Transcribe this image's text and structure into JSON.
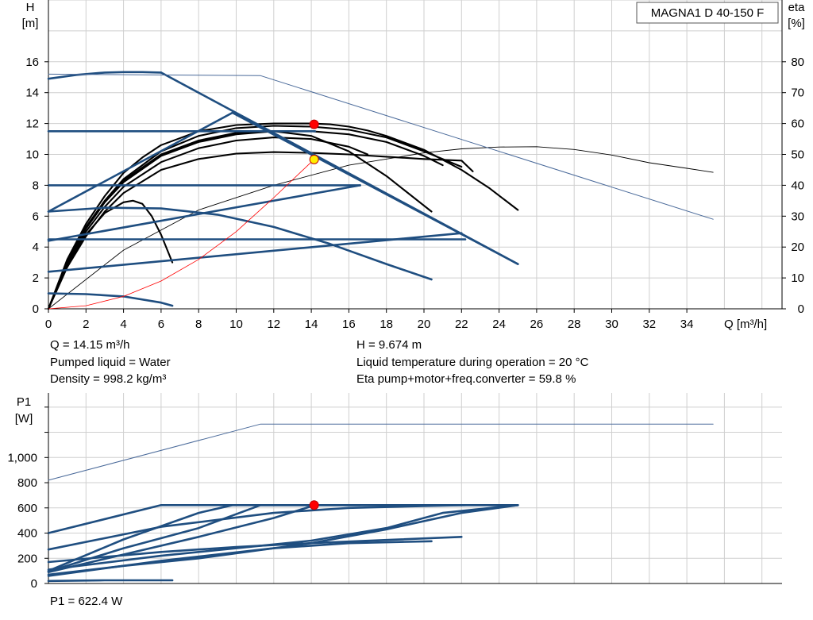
{
  "chart_data": [
    {
      "type": "line",
      "title": "MAGNA1 D 40-150 F",
      "xlabel": "Q [m³/h]",
      "ylabel_lines": [
        "H",
        "[m]"
      ],
      "ylabel2_lines": [
        "eta",
        "[%]"
      ],
      "xlim": [
        0,
        38
      ],
      "ylim": [
        0,
        20
      ],
      "y2lim": [
        0,
        100
      ],
      "x_ticks": [
        0,
        2,
        4,
        6,
        8,
        10,
        12,
        14,
        16,
        18,
        20,
        22,
        24,
        26,
        28,
        30,
        32,
        34
      ],
      "y_ticks": [
        0,
        2,
        4,
        6,
        8,
        10,
        12,
        14,
        16
      ],
      "y2_ticks": [
        0,
        10,
        20,
        30,
        40,
        50,
        60,
        70,
        80
      ],
      "grid": true,
      "colors": {
        "black": "#000000",
        "blue": "#1f4e80",
        "thin": "#4a6a9a",
        "red": "#ff0000"
      },
      "series": [
        {
          "style": "head_black",
          "x": [
            0,
            1,
            2,
            3,
            4,
            5,
            6,
            8,
            10,
            12,
            13,
            14,
            15,
            16,
            17,
            18,
            20,
            22,
            23.5,
            25
          ],
          "y": [
            0,
            3.2,
            5.5,
            7.3,
            8.8,
            9.8,
            10.6,
            11.5,
            11.9,
            12.0,
            12.0,
            12.0,
            11.95,
            11.8,
            11.55,
            11.2,
            10.3,
            9.0,
            7.8,
            6.4
          ]
        },
        {
          "style": "head_black",
          "x": [
            0,
            1,
            2,
            3,
            4,
            6,
            8,
            10,
            12,
            14,
            16,
            18,
            20,
            21,
            22
          ],
          "y": [
            0,
            3.1,
            5.3,
            7.0,
            8.4,
            10.2,
            11.2,
            11.7,
            11.85,
            11.8,
            11.6,
            11.1,
            10.2,
            9.7,
            9.2
          ]
        },
        {
          "style": "head_black",
          "x": [
            0,
            1,
            2,
            3,
            4,
            6,
            8,
            10,
            12,
            14,
            16,
            18,
            20,
            21
          ],
          "y": [
            0,
            3.0,
            5.2,
            6.9,
            8.2,
            9.9,
            10.8,
            11.3,
            11.5,
            11.5,
            11.3,
            10.8,
            9.9,
            9.3
          ]
        },
        {
          "style": "head_black",
          "x": [
            0,
            1,
            2,
            3,
            4,
            6,
            8,
            10,
            12,
            14,
            16,
            17
          ],
          "y": [
            0,
            2.9,
            5.0,
            6.6,
            7.9,
            9.5,
            10.4,
            10.9,
            11.1,
            11.0,
            10.5,
            10.0
          ]
        },
        {
          "style": "head_black",
          "x": [
            0,
            1,
            2,
            3,
            4,
            6,
            8,
            10,
            12,
            14,
            16,
            18,
            20,
            22,
            22.6
          ],
          "y": [
            0,
            2.7,
            4.7,
            6.3,
            7.5,
            9.0,
            9.7,
            10.05,
            10.15,
            10.1,
            10.0,
            9.85,
            9.7,
            9.6,
            8.9
          ]
        },
        {
          "style": "head_black",
          "x": [
            0,
            1,
            2,
            3,
            4,
            6,
            8,
            10,
            12,
            14,
            16,
            18,
            20.4
          ],
          "y": [
            0,
            3.0,
            5.2,
            6.9,
            8.3,
            10.0,
            10.9,
            11.4,
            11.5,
            11.2,
            10.2,
            8.6,
            6.3
          ]
        },
        {
          "style": "head_black",
          "x": [
            0,
            1,
            2,
            3,
            4,
            4.5,
            5,
            5.5,
            6,
            6.6
          ],
          "y": [
            0,
            2.8,
            4.8,
            6.2,
            6.9,
            7.0,
            6.8,
            6.0,
            4.8,
            3.0
          ]
        },
        {
          "style": "eta_black",
          "x": [
            0,
            4,
            8,
            12,
            16,
            20,
            22,
            24,
            26,
            28,
            30,
            32,
            34,
            35.4
          ],
          "y": [
            0,
            19,
            32,
            40,
            46.5,
            50.5,
            51.8,
            52.4,
            52.5,
            51.6,
            49.8,
            47.3,
            45.5,
            44.2
          ]
        },
        {
          "style": "blue_thick",
          "x": [
            0,
            1.5,
            3,
            4,
            5,
            6
          ],
          "y": [
            14.9,
            15.15,
            15.3,
            15.33,
            15.33,
            15.3
          ]
        },
        {
          "style": "blue_thick",
          "x": [
            6,
            25
          ],
          "y": [
            15.3,
            2.9
          ]
        },
        {
          "style": "blue_thick",
          "x": [
            0,
            9.8
          ],
          "y": [
            6.3,
            12.7
          ]
        },
        {
          "style": "blue_thick",
          "x": [
            9.8,
            25
          ],
          "y": [
            12.7,
            2.9
          ]
        },
        {
          "style": "blue_thick",
          "x": [
            0,
            14.2
          ],
          "y": [
            11.5,
            11.5
          ]
        },
        {
          "style": "blue_thick",
          "x": [
            0,
            16.6
          ],
          "y": [
            8.0,
            8.0
          ]
        },
        {
          "style": "blue_thick",
          "x": [
            0,
            22.2
          ],
          "y": [
            4.5,
            4.5
          ]
        },
        {
          "style": "blue_thick",
          "x": [
            0,
            16.6
          ],
          "y": [
            4.4,
            8.0
          ]
        },
        {
          "style": "blue_thick",
          "x": [
            0,
            22
          ],
          "y": [
            2.4,
            4.9
          ]
        },
        {
          "style": "blue_thick",
          "x": [
            0,
            3,
            6,
            9,
            12,
            15,
            18,
            20.4
          ],
          "y": [
            6.3,
            6.55,
            6.5,
            6.1,
            5.3,
            4.2,
            2.9,
            1.9
          ]
        },
        {
          "style": "blue_thick",
          "x": [
            0,
            2,
            4,
            6,
            6.6
          ],
          "y": [
            1.0,
            0.95,
            0.8,
            0.4,
            0.2
          ]
        },
        {
          "style": "blue_thin",
          "x": [
            0,
            11.3,
            35.4
          ],
          "y": [
            15.2,
            15.1,
            5.8
          ]
        },
        {
          "style": "red_thin",
          "x": [
            0,
            2,
            4,
            6,
            8,
            10,
            12,
            14.15
          ],
          "y": [
            0,
            0.2,
            0.8,
            1.8,
            3.2,
            5.0,
            7.2,
            9.674
          ]
        }
      ],
      "points": [
        {
          "x": 14.15,
          "y": 11.95,
          "color": "#ff0000"
        },
        {
          "x": 14.15,
          "y": 9.674,
          "color": "#ffee00"
        }
      ]
    },
    {
      "type": "line",
      "ylabel_lines": [
        "P1",
        "[W]"
      ],
      "xlim": [
        0,
        38
      ],
      "ylim": [
        0,
        1400
      ],
      "y_ticks": [
        0,
        200,
        400,
        600,
        800,
        1000
      ],
      "y_tick_labels": [
        "0",
        "200",
        "400",
        "600",
        "800",
        "1,000"
      ],
      "grid": true,
      "series": [
        {
          "style": "blue_thin",
          "x": [
            0,
            11.3,
            35.4
          ],
          "y": [
            820,
            1265,
            1265
          ]
        },
        {
          "style": "blue_thick",
          "x": [
            0,
            6,
            25
          ],
          "y": [
            400,
            622,
            622
          ]
        },
        {
          "style": "blue_thick",
          "x": [
            0,
            6,
            12,
            16,
            20,
            22.2
          ],
          "y": [
            270,
            450,
            560,
            600,
            615,
            622
          ]
        },
        {
          "style": "blue_thick",
          "x": [
            0,
            4,
            8,
            9.8,
            25
          ],
          "y": [
            100,
            350,
            560,
            622,
            622
          ]
        },
        {
          "style": "blue_thick",
          "x": [
            0,
            4,
            8,
            11.3,
            16.6
          ],
          "y": [
            95,
            280,
            440,
            622,
            622
          ]
        },
        {
          "style": "blue_thick",
          "x": [
            0,
            4,
            8,
            12,
            14.2
          ],
          "y": [
            90,
            230,
            370,
            520,
            622
          ]
        },
        {
          "style": "blue_thick",
          "x": [
            0,
            6,
            10,
            14,
            18,
            21,
            25
          ],
          "y": [
            110,
            220,
            280,
            340,
            440,
            560,
            622
          ]
        },
        {
          "style": "blue_thick",
          "x": [
            0,
            6,
            10,
            14,
            18,
            22
          ],
          "y": [
            170,
            250,
            290,
            320,
            345,
            370
          ]
        },
        {
          "style": "blue_thick",
          "x": [
            0,
            6,
            12,
            16,
            20.4
          ],
          "y": [
            60,
            180,
            280,
            320,
            335
          ]
        },
        {
          "style": "blue_thick",
          "x": [
            0,
            4,
            8,
            14,
            18,
            22,
            25
          ],
          "y": [
            70,
            140,
            200,
            320,
            430,
            560,
            622
          ]
        },
        {
          "style": "blue_thick",
          "x": [
            0,
            3,
            6.6
          ],
          "y": [
            20,
            25,
            25
          ]
        }
      ],
      "points": [
        {
          "x": 14.15,
          "y": 622.4,
          "color": "#ff0000"
        }
      ]
    }
  ],
  "info": {
    "q": "Q = 14.15 m³/h",
    "liquid": "Pumped liquid = Water",
    "density": "Density = 998.2 kg/m³",
    "h": "H = 9.674 m",
    "temp": "Liquid temperature during operation = 20 °C",
    "eta": "Eta pump+motor+freq.converter = 59.8 %",
    "p1": "P1 = 622.4 W"
  }
}
